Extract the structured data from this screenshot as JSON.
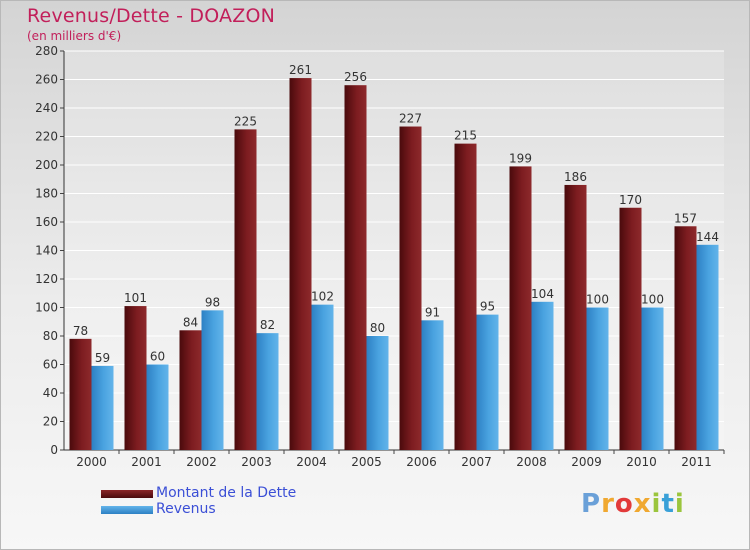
{
  "title": "Revenus/Dette - DOAZON",
  "subtitle": "(en milliers d'€)",
  "chart_data": {
    "type": "bar",
    "categories": [
      "2000",
      "2001",
      "2002",
      "2003",
      "2004",
      "2005",
      "2006",
      "2007",
      "2008",
      "2009",
      "2010",
      "2011"
    ],
    "series": [
      {
        "name": "Montant de la Dette",
        "color": "#7a1a1c",
        "values": [
          78,
          101,
          84,
          225,
          261,
          256,
          227,
          215,
          199,
          186,
          170,
          157
        ]
      },
      {
        "name": "Revenus",
        "color": "#4aa3e0",
        "values": [
          59,
          60,
          98,
          82,
          102,
          80,
          91,
          95,
          104,
          100,
          100,
          144
        ]
      }
    ],
    "ylim": [
      0,
      280
    ],
    "yticks": [
      0,
      20,
      40,
      60,
      80,
      100,
      120,
      140,
      160,
      180,
      200,
      220,
      240,
      260,
      280
    ],
    "grid": true,
    "legend_position": "bottom-left"
  },
  "logo": {
    "text": "Proxiti",
    "letters": [
      "P",
      "r",
      "o",
      "x",
      "i",
      "t",
      "i"
    ]
  }
}
